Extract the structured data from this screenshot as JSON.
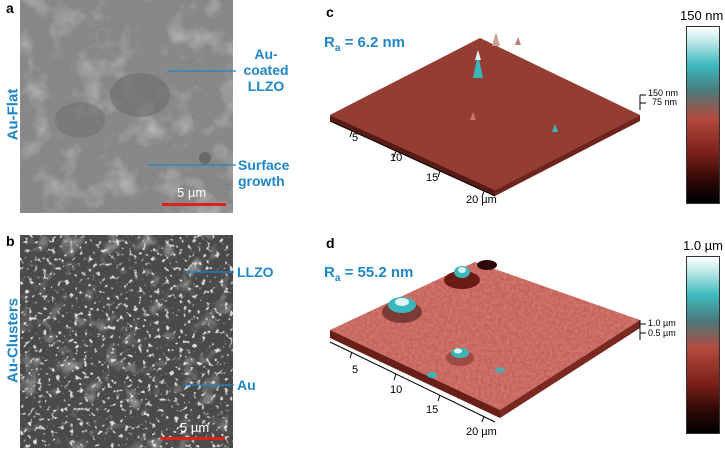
{
  "panels": {
    "a": {
      "letter": "a",
      "side_label": "Au-Flat",
      "annot_top": [
        "Au-",
        "coated",
        "LLZO"
      ],
      "annot_bottom": [
        "Surface",
        "growth"
      ],
      "scale": "5 µm"
    },
    "b": {
      "letter": "b",
      "side_label": "Au-Clusters",
      "annot_top": "LLZO",
      "annot_bottom": "Au",
      "scale": "5 µm"
    },
    "c": {
      "letter": "c",
      "ra_prefix": "R",
      "ra_sub": "a",
      "ra_value": " = 6.2 nm",
      "z_ticks": [
        "150 nm",
        "75 nm"
      ],
      "x_ticks": [
        "5",
        "10",
        "15",
        "20 µm"
      ],
      "colorbar_max": "150 nm"
    },
    "d": {
      "letter": "d",
      "ra_prefix": "R",
      "ra_sub": "a",
      "ra_value": " = 55.2 nm",
      "z_ticks": [
        "1.0 µm",
        "0.5 µm"
      ],
      "x_ticks": [
        "5",
        "10",
        "15",
        "20 µm"
      ],
      "colorbar_max": "1.0 µm"
    }
  },
  "colors": {
    "accent": "#1f86c8",
    "scale_bar": "#e0201a",
    "afm_surface": "#9e3b33"
  }
}
